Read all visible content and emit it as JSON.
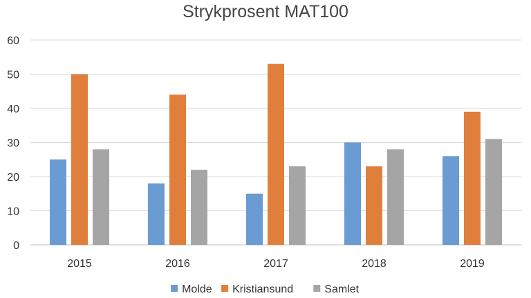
{
  "chart_data": {
    "type": "bar",
    "title": "Strykprosent MAT100",
    "xlabel": "",
    "ylabel": "",
    "categories": [
      "2015",
      "2016",
      "2017",
      "2018",
      "2019"
    ],
    "series": [
      {
        "name": "Molde",
        "color": "#6a9bd3",
        "values": [
          25,
          18,
          15,
          30,
          26
        ]
      },
      {
        "name": "Kristiansund",
        "color": "#e07f3c",
        "values": [
          50,
          44,
          53,
          23,
          39
        ]
      },
      {
        "name": "Samlet",
        "color": "#a5a5a5",
        "values": [
          28,
          22,
          23,
          28,
          31
        ]
      }
    ],
    "ylim": [
      0,
      60
    ],
    "yticks": [
      "0",
      "10",
      "20",
      "30",
      "40",
      "50",
      "60"
    ],
    "grid": true,
    "legend_position": "bottom"
  }
}
